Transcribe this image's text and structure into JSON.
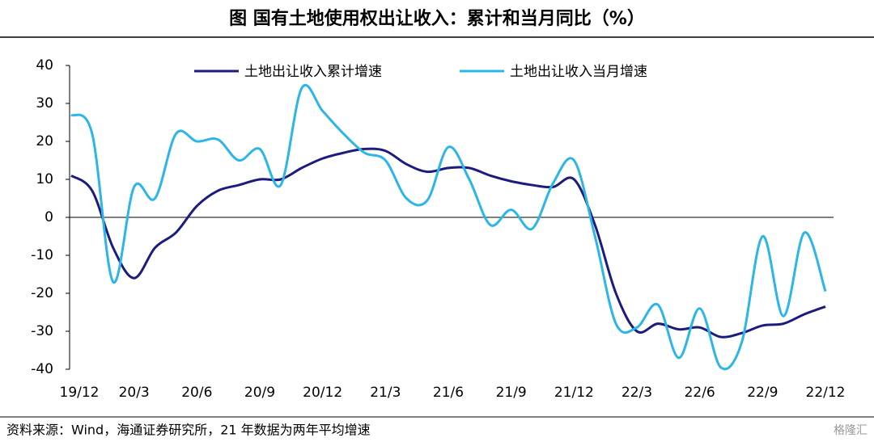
{
  "chart_data": {
    "type": "line",
    "title": "图  国有土地使用权出让收入：累计和当月同比（%）",
    "source": "资料来源：Wind，海通证券研究所，21 年数据为两年平均增速",
    "watermark": "格隆汇",
    "categories": [
      "19/12",
      null,
      null,
      "20/3",
      null,
      null,
      "20/6",
      null,
      null,
      "20/9",
      null,
      null,
      "20/12",
      null,
      null,
      "21/3",
      null,
      null,
      "21/6",
      null,
      null,
      "21/9",
      null,
      null,
      "21/12",
      null,
      null,
      "22/3",
      null,
      null,
      "22/6",
      null,
      null,
      "22/9",
      null,
      null,
      "22/12"
    ],
    "series": [
      {
        "name": "土地出让收入累计增速",
        "color": "#1b1b80",
        "values": [
          11,
          7,
          -8,
          -16,
          -8,
          -4,
          3,
          7,
          8.5,
          10,
          10,
          13,
          15.5,
          17,
          18,
          17.5,
          14,
          12,
          13,
          13,
          11,
          9.5,
          8.5,
          8,
          10,
          -2,
          -20,
          -30,
          -28,
          -29.5,
          -29,
          -31.5,
          -30.5,
          -28.5,
          -28,
          -25.5,
          -23.5
        ]
      },
      {
        "name": "土地出让收入当月增速",
        "color": "#2bb5e8",
        "values": [
          27,
          22,
          -17,
          8,
          5,
          22,
          20,
          20.5,
          15,
          18,
          8.5,
          34,
          28,
          22,
          17,
          15,
          5,
          4.5,
          18.5,
          10,
          -2,
          2,
          -3,
          9,
          15,
          -5,
          -28,
          -29,
          -23,
          -37,
          -24,
          -39.5,
          -33,
          -5,
          -26,
          -4,
          -19.5
        ]
      }
    ],
    "ylim": [
      -40,
      40
    ],
    "yticks": [
      -40,
      -30,
      -20,
      -10,
      0,
      10,
      20,
      30,
      40
    ],
    "legend": "top"
  }
}
